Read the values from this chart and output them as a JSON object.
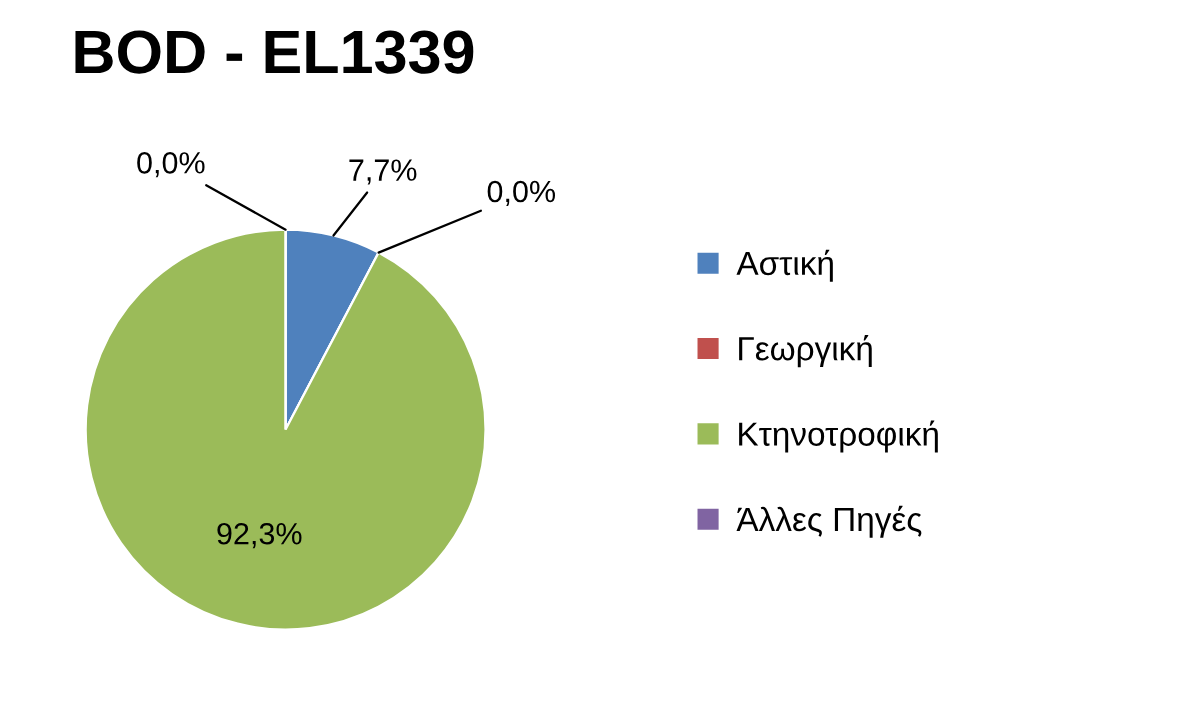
{
  "chart_data": {
    "type": "pie",
    "title": "BOD - EL1339",
    "categories": [
      "Αστική",
      "Γεωργική",
      "Κτηνοτροφική",
      "Άλλες Πηγές"
    ],
    "values": [
      7.7,
      0.0,
      92.3,
      0.0
    ],
    "value_labels": [
      "7,7%",
      "0,0%",
      "92,3%",
      "0,0%"
    ],
    "colors": [
      "#4f81bd",
      "#c0504d",
      "#9bbb59",
      "#8064a2"
    ],
    "legend": "right"
  }
}
